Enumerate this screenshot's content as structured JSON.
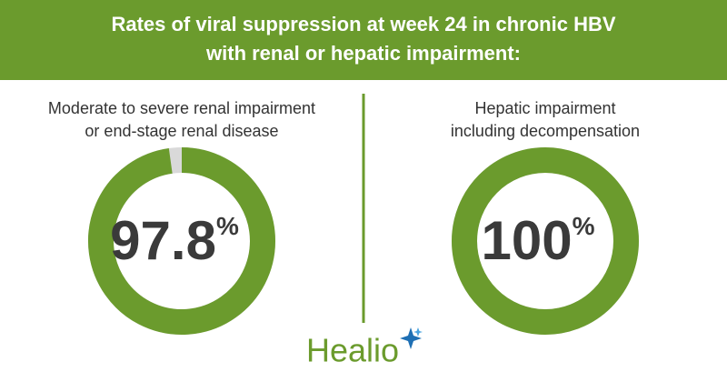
{
  "title": [
    "Rates of viral suppression at week 24 in chronic HBV",
    "with renal or hepatic impairment:"
  ],
  "chart_data": [
    {
      "type": "donut",
      "title": [
        "Moderate to severe renal impairment",
        "or end-stage renal disease"
      ],
      "values": [
        97.8
      ],
      "unit": "%",
      "ylim": [
        0,
        100
      ],
      "color": "#6b9b2d",
      "track_color": "#d9d9d9"
    },
    {
      "type": "donut",
      "title": [
        "Hepatic impairment",
        "including decompensation"
      ],
      "values": [
        100
      ],
      "unit": "%",
      "ylim": [
        0,
        100
      ],
      "color": "#6b9b2d",
      "track_color": "#d9d9d9"
    }
  ],
  "brand": "Healio"
}
